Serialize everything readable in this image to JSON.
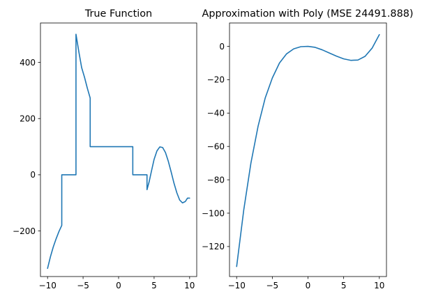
{
  "colors": {
    "series": "#1f77b4",
    "axes": "#000000",
    "background": "#ffffff"
  },
  "chart_data": [
    {
      "type": "line",
      "title": "True Function",
      "xlabel": "",
      "ylabel": "",
      "xlim": [
        -11,
        11
      ],
      "ylim": [
        -362,
        540
      ],
      "grid": false,
      "xticks": [
        -10,
        -5,
        0,
        5,
        10
      ],
      "xtick_labels": [
        "−10",
        "−5",
        "0",
        "5",
        "10"
      ],
      "yticks": [
        -200,
        0,
        200,
        400
      ],
      "ytick_labels": [
        "−200",
        "0",
        "200",
        "400"
      ],
      "series": [
        {
          "x": [
            -10,
            -9.6,
            -9.2,
            -8.8,
            -8.4,
            -8,
            -8,
            -7,
            -6,
            -6,
            -5.6,
            -5.2,
            -4.8,
            -4.4,
            -4,
            -4,
            -3,
            -2,
            -1,
            0,
            1,
            2,
            2,
            2.5,
            3,
            3.5,
            4,
            4,
            4.3,
            4.6,
            5,
            5.4,
            5.8,
            6.2,
            6.6,
            7,
            7.4,
            7.8,
            8.2,
            8.6,
            9,
            9.4,
            9.7,
            10
          ],
          "y": [
            -333,
            -292,
            -257,
            -228,
            -202,
            -180,
            0,
            0,
            0,
            500,
            438,
            381,
            347,
            308,
            273,
            100,
            100,
            100,
            100,
            100,
            100,
            100,
            0,
            0,
            0,
            0,
            0,
            -53,
            -25,
            10,
            55,
            85,
            99,
            97,
            79,
            48,
            10,
            -30,
            -64,
            -90,
            -100,
            -95,
            -83,
            -83
          ]
        }
      ]
    },
    {
      "type": "line",
      "title": "Approximation with Poly (MSE 24491.888)",
      "xlabel": "",
      "ylabel": "",
      "xlim": [
        -11,
        11
      ],
      "ylim": [
        -138,
        14
      ],
      "grid": false,
      "xticks": [
        -10,
        -5,
        0,
        5,
        10
      ],
      "xtick_labels": [
        "−10",
        "−5",
        "0",
        "5",
        "10"
      ],
      "yticks": [
        -120,
        -100,
        -80,
        -60,
        -40,
        -20,
        0
      ],
      "ytick_labels": [
        "−120",
        "−100",
        "−80",
        "−60",
        "−40",
        "−20",
        "0"
      ],
      "series": [
        {
          "x": [
            -10,
            -9,
            -8,
            -7,
            -6,
            -5,
            -4,
            -3,
            -2,
            -1,
            0,
            1,
            2,
            3,
            4,
            5,
            6,
            7,
            8,
            9,
            10
          ],
          "y": [
            -132,
            -98,
            -70,
            -48,
            -31,
            -19,
            -10,
            -4.5,
            -1.5,
            -0.2,
            0,
            -0.6,
            -2.1,
            -4,
            -5.9,
            -7.5,
            -8.4,
            -8.2,
            -6,
            -1,
            7
          ]
        }
      ]
    }
  ]
}
